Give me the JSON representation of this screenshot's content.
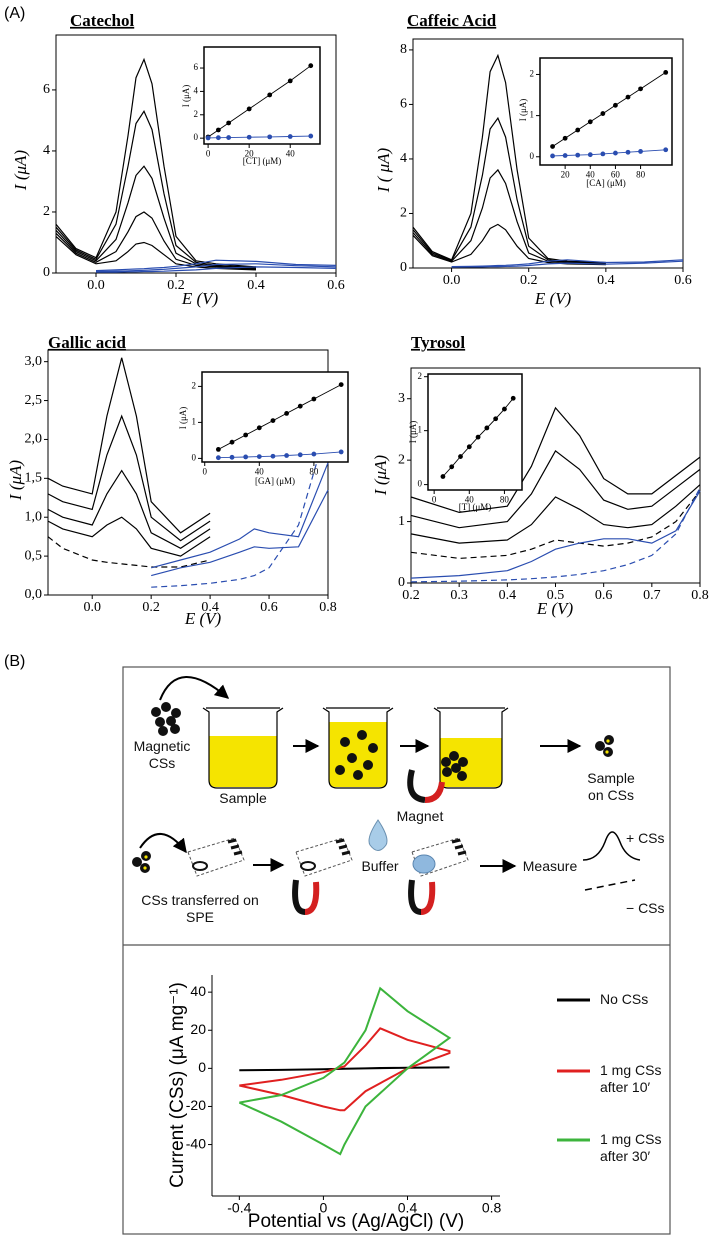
{
  "panel_labels": [
    "(A)",
    "(B)"
  ],
  "scheme": {
    "magnetic": "Magnetic CSs",
    "sample": "Sample",
    "magnet": "Magnet",
    "sample_on": "Sample on CSs",
    "transferred": "CSs transferred on SPE",
    "buffer": "Buffer",
    "measure": "Measure",
    "plus": "+ CSs",
    "minus": "− CSs"
  },
  "chart_data": [
    {
      "type": "line",
      "title": "Catechol",
      "x_label": "E (V)",
      "y_label": "I (μA)",
      "xlim": [
        -0.1,
        0.6
      ],
      "ylim": [
        0,
        7.8
      ],
      "xticks": [
        {
          "value": 0,
          "label": "0.0"
        },
        0.2,
        0.4,
        0.6
      ],
      "yticks": [
        0,
        2,
        4,
        6
      ],
      "x": [
        -0.1,
        -0.05,
        0,
        0.05,
        0.08,
        0.1,
        0.12,
        0.14,
        0.17,
        0.2,
        0.25,
        0.3,
        0.4,
        0.5,
        0.6
      ],
      "series": [
        {
          "color": "#000000",
          "values": [
            1.6,
            0.8,
            0.5,
            2.0,
            4.5,
            6.4,
            7.0,
            6.2,
            3.5,
            1.2,
            0.4,
            0.3,
            0.2,
            null,
            null
          ]
        },
        {
          "color": "#000000",
          "values": [
            1.5,
            0.75,
            0.45,
            1.6,
            3.5,
            4.9,
            5.3,
            4.7,
            2.6,
            0.9,
            0.35,
            0.25,
            0.18,
            null,
            null
          ]
        },
        {
          "color": "#000000",
          "values": [
            1.4,
            0.7,
            0.4,
            1.1,
            2.3,
            3.2,
            3.5,
            3.1,
            1.8,
            0.65,
            0.3,
            0.22,
            0.15,
            null,
            null
          ]
        },
        {
          "color": "#000000",
          "values": [
            1.3,
            0.65,
            0.35,
            0.7,
            1.35,
            1.85,
            2.0,
            1.8,
            1.05,
            0.45,
            0.25,
            0.2,
            0.12,
            null,
            null
          ]
        },
        {
          "color": "#000000",
          "values": [
            1.2,
            0.6,
            0.3,
            0.4,
            0.7,
            0.95,
            1.0,
            0.9,
            0.6,
            0.3,
            0.2,
            0.15,
            0.1,
            null,
            null
          ]
        },
        {
          "color": "#2a4db0",
          "values": [
            null,
            null,
            0.08,
            0.1,
            0.12,
            0.13,
            0.14,
            0.16,
            0.18,
            0.22,
            0.3,
            0.42,
            0.38,
            0.28,
            0.25
          ]
        },
        {
          "color": "#2a4db0",
          "values": [
            null,
            null,
            0.05,
            0.06,
            0.07,
            0.08,
            0.09,
            0.1,
            0.12,
            0.15,
            0.2,
            0.28,
            0.3,
            0.24,
            0.2
          ]
        },
        {
          "color": "#2a4db0",
          "values": [
            null,
            null,
            0.03,
            0.03,
            0.04,
            0.04,
            0.05,
            0.05,
            0.06,
            0.08,
            0.1,
            0.15,
            0.2,
            0.18,
            0.15
          ]
        }
      ],
      "inset": {
        "type": "line",
        "markers": true,
        "x_label": "[CT] (μM)",
        "y_label": "I (μA)",
        "xlim": [
          -2,
          54.5
        ],
        "ylim": [
          -0.5,
          7.8
        ],
        "xticks": [
          0,
          20,
          40
        ],
        "yticks": [
          0,
          2,
          4,
          6
        ],
        "x": [
          0,
          5,
          10,
          20,
          30,
          40,
          50
        ],
        "series": [
          {
            "color": "#000000",
            "values": [
              0.1,
              0.7,
              1.3,
              2.5,
              3.7,
              4.9,
              6.2
            ]
          },
          {
            "color": "#2a4db0",
            "values": [
              0.02,
              0.04,
              0.05,
              0.08,
              0.11,
              0.14,
              0.18
            ]
          }
        ]
      }
    },
    {
      "type": "line",
      "title": "Caffeic Acid",
      "x_label": "E (V)",
      "y_label": "I ( μA)",
      "xlim": [
        -0.1,
        0.6
      ],
      "ylim": [
        0,
        8.4
      ],
      "xticks": [
        {
          "value": 0,
          "label": "0.0"
        },
        0.2,
        0.4,
        0.6
      ],
      "yticks": [
        0,
        2,
        4,
        6,
        8
      ],
      "x": [
        -0.1,
        -0.05,
        0,
        0.05,
        0.08,
        0.1,
        0.12,
        0.14,
        0.17,
        0.2,
        0.25,
        0.3,
        0.4,
        0.5,
        0.6
      ],
      "series": [
        {
          "color": "#000000",
          "values": [
            1.5,
            0.6,
            0.3,
            2.0,
            4.8,
            7.2,
            7.8,
            6.8,
            3.6,
            1.1,
            0.35,
            0.25,
            0.2,
            null,
            null
          ]
        },
        {
          "color": "#000000",
          "values": [
            1.4,
            0.55,
            0.28,
            1.5,
            3.4,
            5.1,
            5.5,
            4.8,
            2.5,
            0.8,
            0.3,
            0.22,
            0.18,
            null,
            null
          ]
        },
        {
          "color": "#000000",
          "values": [
            1.3,
            0.5,
            0.25,
            1.0,
            2.2,
            3.3,
            3.6,
            3.1,
            1.7,
            0.55,
            0.25,
            0.2,
            0.15,
            null,
            null
          ]
        },
        {
          "color": "#000000",
          "values": [
            1.2,
            0.45,
            0.22,
            0.5,
            1.0,
            1.45,
            1.6,
            1.4,
            0.8,
            0.35,
            0.2,
            0.15,
            0.12,
            null,
            null
          ]
        },
        {
          "color": "#2a4db0",
          "values": [
            null,
            null,
            0.05,
            0.06,
            0.07,
            0.08,
            0.09,
            0.1,
            0.12,
            0.15,
            0.25,
            0.3,
            0.2,
            0.22,
            0.3
          ]
        },
        {
          "color": "#2a4db0",
          "values": [
            null,
            null,
            0.03,
            0.04,
            0.04,
            0.05,
            0.05,
            0.06,
            0.07,
            0.09,
            0.15,
            0.18,
            0.14,
            0.18,
            0.25
          ]
        }
      ],
      "inset": {
        "type": "line",
        "markers": true,
        "x_label": "[CA] (μM)",
        "y_label": "I (μA)",
        "xlim": [
          0,
          105
        ],
        "ylim": [
          -0.2,
          2.4
        ],
        "xticks": [
          20,
          40,
          60,
          80
        ],
        "yticks": [
          0,
          1,
          2
        ],
        "x": [
          10,
          20,
          30,
          40,
          50,
          60,
          70,
          80,
          100
        ],
        "series": [
          {
            "color": "#000000",
            "values": [
              0.25,
              0.45,
              0.65,
              0.85,
              1.05,
              1.25,
              1.45,
              1.65,
              2.05
            ]
          },
          {
            "color": "#2a4db0",
            "values": [
              0.02,
              0.03,
              0.04,
              0.05,
              0.07,
              0.09,
              0.11,
              0.13,
              0.17
            ]
          }
        ]
      }
    },
    {
      "type": "line",
      "title": "Gallic acid",
      "x_label": "E (V)",
      "y_label": "I (μA)",
      "xlim": [
        -0.15,
        0.8
      ],
      "ylim": [
        0,
        3.15
      ],
      "xticks": [
        {
          "value": 0,
          "label": "0.0"
        },
        0.2,
        0.4,
        0.6,
        0.8
      ],
      "yticks": [
        {
          "value": 0,
          "label": "0,0"
        },
        {
          "value": 0.5,
          "label": "0,5"
        },
        {
          "value": 1,
          "label": "1,0"
        },
        {
          "value": 1.5,
          "label": "1,5"
        },
        {
          "value": 2,
          "label": "2,0"
        },
        {
          "value": 2.5,
          "label": "2,5"
        },
        {
          "value": 3,
          "label": "3,0"
        }
      ],
      "x": [
        -0.15,
        -0.1,
        0,
        0.05,
        0.1,
        0.15,
        0.2,
        0.3,
        0.4,
        0.5,
        0.55,
        0.6,
        0.7,
        0.8
      ],
      "series": [
        {
          "color": "#000000",
          "values": [
            1.5,
            1.4,
            1.3,
            2.3,
            3.05,
            2.3,
            1.2,
            0.8,
            1.05,
            null,
            null,
            null,
            null,
            null
          ]
        },
        {
          "color": "#000000",
          "values": [
            1.3,
            1.2,
            1.1,
            1.8,
            2.3,
            1.8,
            1.0,
            0.7,
            0.95,
            null,
            null,
            null,
            null,
            null
          ]
        },
        {
          "color": "#000000",
          "values": [
            1.1,
            1.0,
            0.9,
            1.3,
            1.6,
            1.3,
            0.8,
            0.6,
            0.85,
            null,
            null,
            null,
            null,
            null
          ]
        },
        {
          "color": "#000000",
          "values": [
            0.95,
            0.85,
            0.75,
            0.9,
            1.0,
            0.85,
            0.6,
            0.5,
            0.75,
            null,
            null,
            null,
            null,
            null
          ]
        },
        {
          "color": "#000000",
          "dash": true,
          "values": [
            0.75,
            0.6,
            0.45,
            0.42,
            0.4,
            0.38,
            0.36,
            0.36,
            0.45,
            null,
            null,
            null,
            null,
            null
          ]
        },
        {
          "color": "#2a4db0",
          "values": [
            null,
            null,
            null,
            null,
            null,
            null,
            0.35,
            0.45,
            0.55,
            0.72,
            0.85,
            0.8,
            0.75,
            1.7
          ]
        },
        {
          "color": "#2a4db0",
          "values": [
            null,
            null,
            null,
            null,
            null,
            null,
            0.25,
            0.35,
            0.42,
            0.55,
            0.62,
            0.6,
            0.62,
            1.35
          ]
        },
        {
          "color": "#2a4db0",
          "dash": true,
          "values": [
            null,
            null,
            null,
            null,
            null,
            null,
            0.1,
            0.12,
            0.15,
            0.2,
            0.25,
            0.35,
            0.9,
            2.2
          ]
        }
      ],
      "inset": {
        "type": "line",
        "markers": true,
        "x_label": "[GA] (μM)",
        "y_label": "I (μA)",
        "xlim": [
          -2,
          105
        ],
        "ylim": [
          -0.1,
          2.4
        ],
        "xticks": [
          0,
          40,
          80
        ],
        "yticks": [
          0,
          1,
          2
        ],
        "x": [
          10,
          20,
          30,
          40,
          50,
          60,
          70,
          80,
          100
        ],
        "series": [
          {
            "color": "#000000",
            "values": [
              0.25,
              0.45,
              0.65,
              0.85,
              1.05,
              1.25,
              1.45,
              1.65,
              2.05
            ]
          },
          {
            "color": "#2a4db0",
            "values": [
              0.02,
              0.03,
              0.04,
              0.05,
              0.06,
              0.08,
              0.1,
              0.12,
              0.18
            ]
          }
        ]
      }
    },
    {
      "type": "line",
      "title": "Tyrosol",
      "x_label": "E (V)",
      "y_label": "I (μA)",
      "xlim": [
        0.2,
        0.8
      ],
      "ylim": [
        0,
        3.5
      ],
      "xticks": [
        0.2,
        0.3,
        0.4,
        0.5,
        0.6,
        0.7,
        0.8
      ],
      "yticks": [
        0,
        1,
        2,
        3
      ],
      "x": [
        0.2,
        0.3,
        0.4,
        0.45,
        0.5,
        0.55,
        0.6,
        0.65,
        0.7,
        0.75,
        0.8
      ],
      "series": [
        {
          "color": "#000000",
          "values": [
            1.4,
            1.15,
            1.25,
            1.9,
            2.85,
            2.4,
            1.7,
            1.45,
            1.45,
            1.75,
            2.05
          ]
        },
        {
          "color": "#000000",
          "values": [
            1.1,
            0.9,
            1.0,
            1.45,
            2.15,
            1.85,
            1.35,
            1.2,
            1.25,
            1.55,
            1.85
          ]
        },
        {
          "color": "#000000",
          "values": [
            0.8,
            0.65,
            0.7,
            0.95,
            1.4,
            1.2,
            0.95,
            0.9,
            0.95,
            1.25,
            1.6
          ]
        },
        {
          "color": "#000000",
          "dash": true,
          "values": [
            0.5,
            0.4,
            0.45,
            0.55,
            0.7,
            0.65,
            0.6,
            0.65,
            0.75,
            1.0,
            1.5
          ]
        },
        {
          "color": "#2a4db0",
          "values": [
            0.08,
            0.12,
            0.2,
            0.35,
            0.55,
            0.65,
            0.72,
            0.72,
            0.65,
            0.85,
            1.5
          ]
        },
        {
          "color": "#2a4db0",
          "dash": true,
          "values": [
            0.02,
            0.03,
            0.05,
            0.07,
            0.1,
            0.14,
            0.2,
            0.3,
            0.45,
            0.8,
            1.55
          ]
        }
      ],
      "inset": {
        "type": "line",
        "markers": true,
        "x_label": "[T] (μM)",
        "y_label": "I (μA)",
        "xlim": [
          -7,
          100
        ],
        "ylim": [
          -0.1,
          2.05
        ],
        "xticks": [
          0,
          40,
          80
        ],
        "yticks": [
          0,
          1,
          2
        ],
        "x": [
          10,
          20,
          30,
          40,
          50,
          60,
          70,
          80,
          90
        ],
        "series": [
          {
            "color": "#000000",
            "values": [
              0.15,
              0.33,
              0.52,
              0.7,
              0.88,
              1.05,
              1.22,
              1.4,
              1.6
            ]
          }
        ]
      }
    },
    {
      "type": "line",
      "x_label": "Potential vs (Ag/AgCl)  (V)",
      "y_label": "Current (CSs)  (μA mg⁻¹)",
      "xlim": [
        -0.53,
        0.84
      ],
      "ylim": [
        -67,
        49
      ],
      "xticks": [
        -0.4,
        0,
        0.4,
        0.8
      ],
      "yticks": [
        -40,
        -20,
        0,
        20,
        40
      ],
      "x": [
        -0.4,
        -0.2,
        0,
        0.1,
        0.2,
        0.27,
        0.4,
        0.6,
        0.6,
        0.4,
        0.2,
        0.1,
        0.08,
        0,
        -0.2,
        -0.4
      ],
      "series": [
        {
          "name": "No CSs",
          "color": "#000000",
          "values": [
            -1,
            -0.8,
            -0.5,
            -0.2,
            0,
            0.2,
            0.3,
            0.5,
            0.5,
            0.3,
            0,
            -0.2,
            -0.3,
            -0.5,
            -0.8,
            -1
          ]
        },
        {
          "name": "1 mg CSs after 10′",
          "color": "#e02020",
          "values": [
            -9,
            -6,
            -2,
            1,
            12,
            21,
            15,
            9,
            8,
            0,
            -12,
            -22,
            -22,
            -20,
            -14,
            -9
          ]
        },
        {
          "name": "1 mg CSs after 30′",
          "color": "#3cb43c",
          "values": [
            -18,
            -14,
            -5,
            3,
            20,
            42,
            30,
            16,
            16,
            0,
            -20,
            -40,
            -45,
            -40,
            -28,
            -18
          ]
        }
      ]
    }
  ]
}
